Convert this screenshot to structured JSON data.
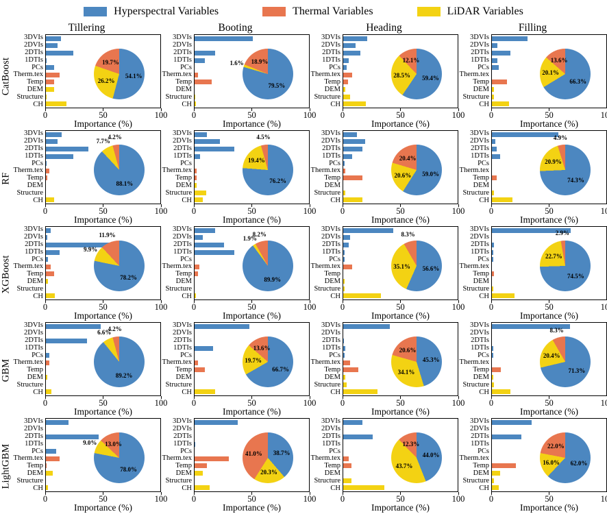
{
  "legend": [
    {
      "name": "hyperspectral",
      "label": "Hyperspectral Variables",
      "color": "#4c87c0"
    },
    {
      "name": "thermal",
      "label": "Thermal Variables",
      "color": "#e8764f"
    },
    {
      "name": "lidar",
      "label": "LiDAR Variables",
      "color": "#f3d213"
    }
  ],
  "colors": {
    "hyper": "#4c87c0",
    "thermal": "#e8764f",
    "lidar": "#f3d213"
  },
  "categories": [
    "3DVIs",
    "2DVIs",
    "2DTIs",
    "1DTIs",
    "PCs",
    "Therm.tex",
    "Temp",
    "DEM",
    "Structure",
    "CH"
  ],
  "category_groups": [
    "hyper",
    "hyper",
    "hyper",
    "hyper",
    "hyper",
    "thermal",
    "thermal",
    "lidar",
    "lidar",
    "lidar"
  ],
  "columns": [
    "Tillering",
    "Booting",
    "Heading",
    "Filling"
  ],
  "rows": [
    "CatBoost",
    "RF",
    "XGBoost",
    "GBM",
    "LightGBM"
  ],
  "xlabel": "Importance (%)",
  "xlim": [
    0,
    100
  ],
  "xticks": [
    0,
    50,
    100
  ],
  "chart_data": {
    "type": "bar",
    "note": "20 subplots: horizontal bar charts of variable importance with inset pies (hyperspectral/thermal/LiDAR shares, %)",
    "subplots": [
      {
        "row": "CatBoost",
        "col": "Tillering",
        "bars": [
          13,
          10,
          24,
          0.5,
          7,
          12,
          7,
          7,
          0.5,
          18
        ],
        "pie": {
          "hyper": 54.1,
          "thermal": 19.7,
          "lidar": 26.2
        }
      },
      {
        "row": "CatBoost",
        "col": "Booting",
        "bars": [
          51,
          0,
          18,
          9,
          0,
          3,
          15,
          0,
          0.5,
          1
        ],
        "pie": {
          "hyper": 79.5,
          "thermal": 18.9,
          "lidar": 1.6
        }
      },
      {
        "row": "CatBoost",
        "col": "Heading",
        "bars": [
          21,
          11,
          15,
          5,
          3,
          8,
          4,
          2,
          6,
          20
        ],
        "pie": {
          "hyper": 59.4,
          "thermal": 12.1,
          "lidar": 28.5
        }
      },
      {
        "row": "CatBoost",
        "col": "Filling",
        "bars": [
          31,
          5,
          16,
          5,
          6,
          0,
          13,
          2,
          2,
          15
        ],
        "pie": {
          "hyper": 66.3,
          "thermal": 13.6,
          "lidar": 20.1
        }
      },
      {
        "row": "RF",
        "col": "Tillering",
        "bars": [
          14,
          10,
          37,
          24,
          0.5,
          3,
          1,
          0,
          0,
          7
        ],
        "pie": {
          "hyper": 88.1,
          "thermal": 4.2,
          "lidar": 7.7
        }
      },
      {
        "row": "RF",
        "col": "Booting",
        "bars": [
          11,
          22,
          35,
          5,
          0,
          2,
          2,
          2,
          10,
          7
        ],
        "pie": {
          "hyper": 76.2,
          "thermal": 4.5,
          "lidar": 19.4
        }
      },
      {
        "row": "RF",
        "col": "Heading",
        "bars": [
          12,
          19,
          17,
          8,
          1,
          2,
          17,
          0,
          2,
          17
        ],
        "pie": {
          "hyper": 59.0,
          "thermal": 20.4,
          "lidar": 20.6
        }
      },
      {
        "row": "RF",
        "col": "Filling",
        "bars": [
          58,
          3,
          4,
          7,
          0,
          0,
          4,
          0,
          2,
          18
        ],
        "pie": {
          "hyper": 74.3,
          "thermal": 4.9,
          "lidar": 20.9
        }
      },
      {
        "row": "XGBoost",
        "col": "Tillering",
        "bars": [
          4,
          1,
          57,
          12,
          2,
          4,
          7,
          2,
          0,
          8
        ],
        "pie": {
          "hyper": 78.2,
          "thermal": 11.9,
          "lidar": 9.9
        }
      },
      {
        "row": "XGBoost",
        "col": "Booting",
        "bars": [
          18,
          7,
          26,
          35,
          0,
          4,
          3,
          0,
          0,
          1
        ],
        "pie": {
          "hyper": 89.9,
          "thermal": 8.2,
          "lidar": 1.9
        }
      },
      {
        "row": "XGBoost",
        "col": "Heading",
        "bars": [
          44,
          6,
          5,
          1,
          1,
          8,
          0,
          1,
          1,
          33
        ],
        "pie": {
          "hyper": 56.6,
          "thermal": 8.3,
          "lidar": 35.1
        }
      },
      {
        "row": "XGBoost",
        "col": "Filling",
        "bars": [
          69,
          0,
          2,
          1,
          1,
          0,
          2,
          0,
          1,
          20
        ],
        "pie": {
          "hyper": 74.5,
          "thermal": 2.9,
          "lidar": 22.7
        }
      },
      {
        "row": "GBM",
        "col": "Tillering",
        "bars": [
          48,
          0,
          36,
          0,
          3,
          3,
          0,
          1,
          0,
          5
        ],
        "pie": {
          "hyper": 89.2,
          "thermal": 4.2,
          "lidar": 6.6
        }
      },
      {
        "row": "GBM",
        "col": "Booting",
        "bars": [
          48,
          0,
          0,
          16,
          0,
          3,
          9,
          0,
          0,
          18
        ],
        "pie": {
          "hyper": 66.7,
          "thermal": 13.6,
          "lidar": 19.7
        }
      },
      {
        "row": "GBM",
        "col": "Heading",
        "bars": [
          41,
          0,
          0.5,
          2,
          1,
          6,
          13,
          2,
          3,
          30
        ],
        "pie": {
          "hyper": 45.3,
          "thermal": 20.6,
          "lidar": 34.1
        }
      },
      {
        "row": "GBM",
        "col": "Filling",
        "bars": [
          68,
          0,
          0,
          1,
          1,
          0,
          8,
          1,
          2,
          16
        ],
        "pie": {
          "hyper": 71.3,
          "thermal": 8.3,
          "lidar": 20.4
        }
      },
      {
        "row": "LightGBM",
        "col": "Tillering",
        "bars": [
          20,
          0,
          46,
          0,
          9,
          12,
          0.5,
          6,
          0,
          2
        ],
        "pie": {
          "hyper": 78.0,
          "thermal": 13.0,
          "lidar": 9.0
        }
      },
      {
        "row": "LightGBM",
        "col": "Booting",
        "bars": [
          38,
          0,
          0,
          0.5,
          0,
          30,
          11,
          7,
          0,
          13
        ],
        "pie": {
          "hyper": 38.7,
          "thermal": 41.0,
          "lidar": 20.3
        }
      },
      {
        "row": "LightGBM",
        "col": "Heading",
        "bars": [
          17,
          0,
          26,
          0,
          0,
          5,
          7,
          0,
          7,
          36
        ],
        "pie": {
          "hyper": 44.0,
          "thermal": 12.3,
          "lidar": 43.7
        }
      },
      {
        "row": "LightGBM",
        "col": "Filling",
        "bars": [
          35,
          0,
          26,
          0,
          0,
          0,
          21,
          7,
          2,
          6
        ],
        "pie": {
          "hyper": 62.0,
          "thermal": 22.0,
          "lidar": 16.0
        }
      }
    ]
  }
}
